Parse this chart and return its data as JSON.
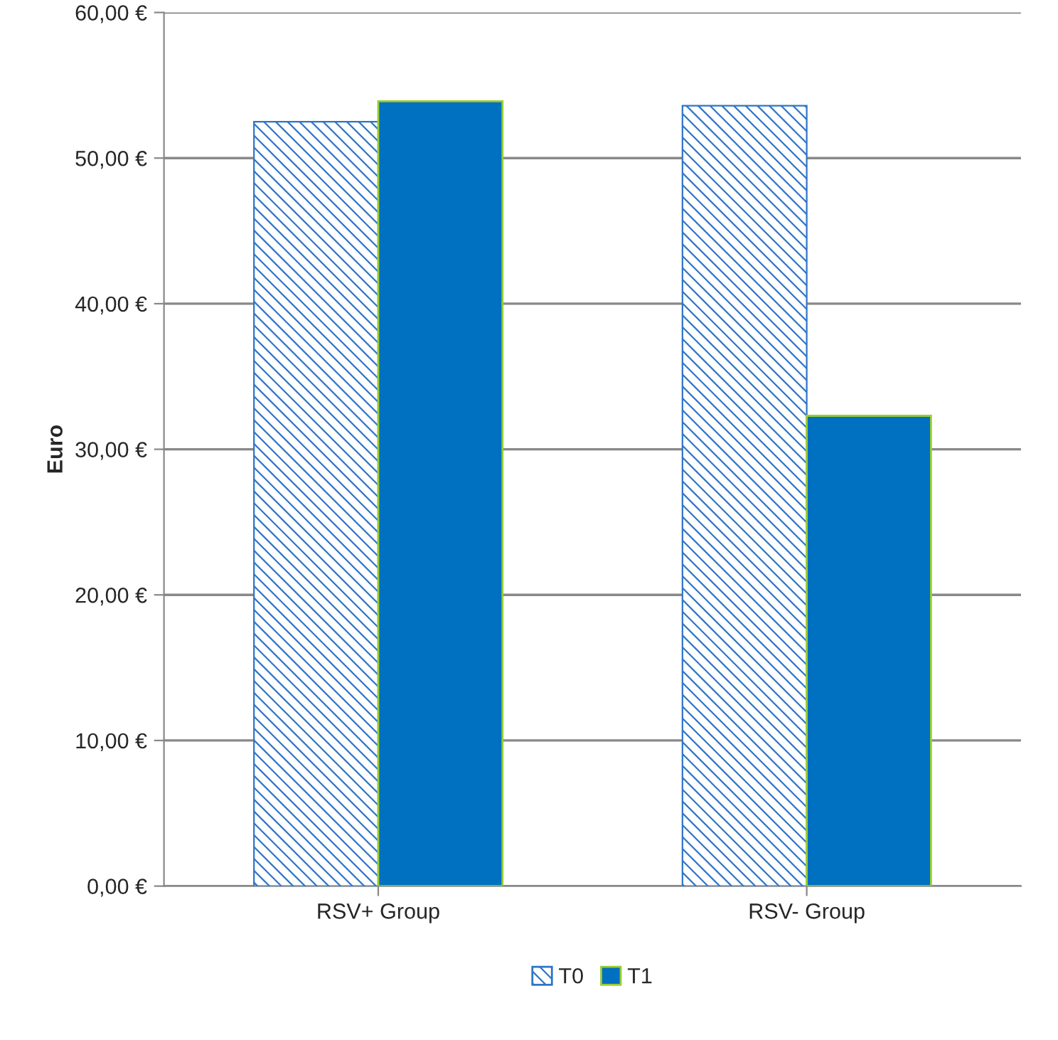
{
  "chart_data": {
    "type": "bar",
    "ylabel": "Euro",
    "categories": [
      "RSV+ Group",
      "RSV- Group"
    ],
    "series": [
      {
        "name": "T0",
        "color": "#2e75c8",
        "values": [
          52.5,
          53.6
        ]
      },
      {
        "name": "T1",
        "color": "#0070c0",
        "values": [
          53.9,
          32.3
        ]
      }
    ],
    "ylim": [
      0,
      60
    ],
    "yticks": [
      {
        "value": 0,
        "label": "0,00 €"
      },
      {
        "value": 10,
        "label": "10,00 €"
      },
      {
        "value": 20,
        "label": "20,00 €"
      },
      {
        "value": 30,
        "label": "30,00 €"
      },
      {
        "value": 40,
        "label": "40,00 €"
      },
      {
        "value": 50,
        "label": "50,00 €"
      },
      {
        "value": 60,
        "label": "60,00 €"
      }
    ],
    "grid": "y",
    "legend": "bottom"
  }
}
